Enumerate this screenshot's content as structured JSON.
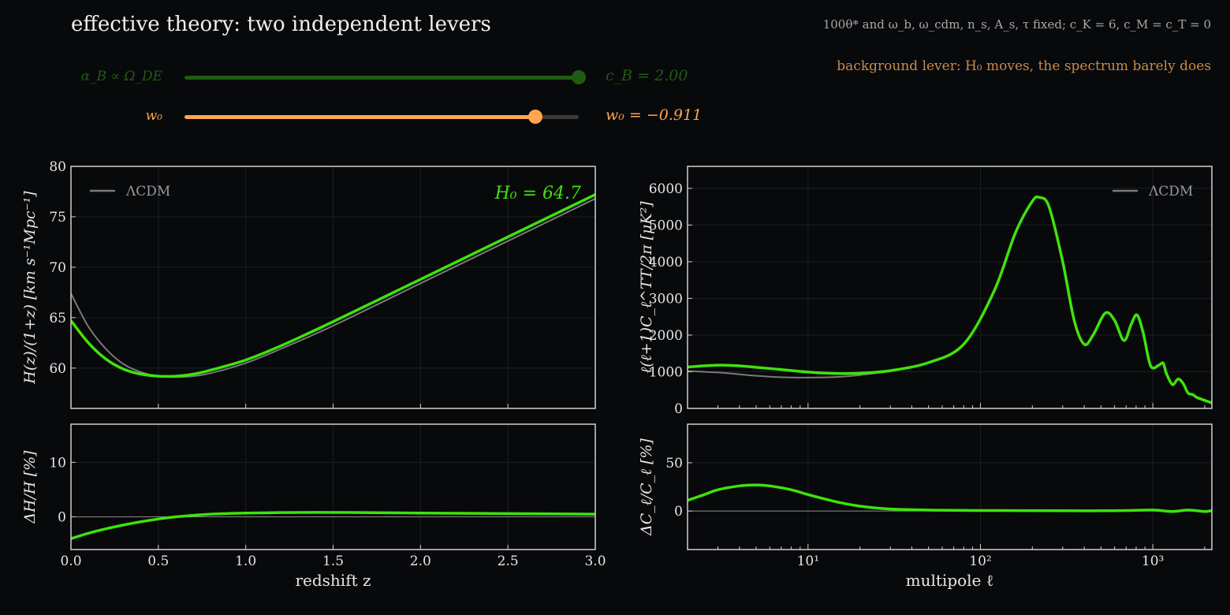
{
  "header": {
    "title": "effective theory: two independent levers",
    "subtitle": "100θ* and ω_b, ω_cdm, n_s, A_s, τ fixed;  c_K = 6, c_M = c_T = 0",
    "lever_note": "background lever:  H₀ moves, the spectrum barely does"
  },
  "sliders": [
    {
      "label": "α_B ∝ Ω_DE",
      "readout": "c_B = 2.00",
      "value_fraction": 1.0,
      "color": "#1f5c12",
      "track_color": "#1f5c12"
    },
    {
      "label": "w₀",
      "readout": "w₀ = −0.911",
      "value_fraction": 0.89,
      "color": "#ffa64d",
      "track_color": "#3a3a3a"
    }
  ],
  "colors": {
    "model": "#3ee30b",
    "lcdm": "#7a7a7a",
    "axis": "#d0d0d0",
    "grid": "#1c1f22"
  },
  "chart_data": [
    {
      "type": "line",
      "id": "hubble",
      "ylabel": "H(z)/(1+z)  [km s⁻¹Mpc⁻¹]",
      "xlim": [
        0,
        3
      ],
      "ylim": [
        56,
        80
      ],
      "xticks": [
        0.0,
        0.5,
        1.0,
        1.5,
        2.0,
        2.5,
        3.0
      ],
      "yticks": [
        60,
        65,
        70,
        75,
        80
      ],
      "legend": "top-left",
      "annotation": "H₀ = 64.7",
      "series": [
        {
          "name": "ΛCDM",
          "x": [
            0,
            0.1,
            0.2,
            0.3,
            0.4,
            0.5,
            0.6,
            0.7,
            0.8,
            1.0,
            1.2,
            1.5,
            2.0,
            2.5,
            3.0
          ],
          "y": [
            67.4,
            64.1,
            61.9,
            60.4,
            59.6,
            59.2,
            59.1,
            59.2,
            59.5,
            60.5,
            61.9,
            64.2,
            68.4,
            72.6,
            76.8
          ]
        },
        {
          "name": "",
          "x": [
            0,
            0.1,
            0.2,
            0.3,
            0.4,
            0.5,
            0.6,
            0.7,
            0.8,
            1.0,
            1.2,
            1.5,
            2.0,
            2.5,
            3.0
          ],
          "y": [
            64.7,
            62.5,
            60.9,
            59.9,
            59.4,
            59.2,
            59.2,
            59.4,
            59.8,
            60.8,
            62.2,
            64.6,
            68.8,
            73.0,
            77.2
          ]
        }
      ]
    },
    {
      "type": "line",
      "id": "hubble-diff",
      "xlabel": "redshift z",
      "ylabel": "ΔH/H  [%]",
      "xlim": [
        0,
        3
      ],
      "ylim": [
        -6,
        17
      ],
      "xticks": [
        0.0,
        0.5,
        1.0,
        1.5,
        2.0,
        2.5,
        3.0
      ],
      "yticks": [
        0,
        10
      ],
      "series": [
        {
          "name": "",
          "x": [
            0,
            0.1,
            0.2,
            0.3,
            0.4,
            0.5,
            0.6,
            0.8,
            1.0,
            1.3,
            1.6,
            2.0,
            2.5,
            3.0
          ],
          "y": [
            -4.0,
            -3.0,
            -2.2,
            -1.5,
            -0.9,
            -0.4,
            0.0,
            0.5,
            0.7,
            0.8,
            0.8,
            0.7,
            0.6,
            0.5
          ]
        }
      ]
    },
    {
      "type": "line",
      "id": "cmb",
      "ylabel": "ℓ(ℓ+1)C_ℓ^TT/2π  [μK²]",
      "xscale": "log",
      "xlim": [
        2,
        2200
      ],
      "ylim": [
        0,
        6600
      ],
      "yticks": [
        0,
        1000,
        2000,
        3000,
        4000,
        5000,
        6000
      ],
      "legend": "top-right",
      "series": [
        {
          "name": "ΛCDM",
          "x": [
            2,
            3,
            4,
            5,
            7,
            10,
            15,
            20,
            30
          ],
          "y": [
            1020,
            980,
            930,
            890,
            850,
            840,
            860,
            910,
            1010
          ]
        },
        {
          "name": "",
          "x": [
            2,
            3,
            4,
            5,
            7,
            10,
            15,
            20,
            30,
            50,
            80,
            120,
            160,
            200,
            220,
            250,
            300,
            350,
            400,
            450,
            530,
            600,
            680,
            750,
            810,
            880,
            950,
            1000,
            1100,
            1150,
            1200,
            1300,
            1400,
            1500,
            1600,
            1700,
            1800,
            2000,
            2200
          ],
          "y": [
            1130,
            1180,
            1160,
            1120,
            1060,
            990,
            950,
            960,
            1030,
            1250,
            1750,
            3200,
            4800,
            5650,
            5750,
            5500,
            4000,
            2400,
            1750,
            2000,
            2600,
            2400,
            1850,
            2300,
            2550,
            2050,
            1300,
            1100,
            1200,
            1230,
            950,
            650,
            800,
            680,
            420,
            380,
            300,
            220,
            150
          ]
        }
      ]
    },
    {
      "type": "line",
      "id": "cmb-diff",
      "xlabel": "multipole ℓ",
      "ylabel": "ΔC_ℓ/C_ℓ  [%]",
      "xscale": "log",
      "xlim": [
        2,
        2200
      ],
      "ylim": [
        -40,
        90
      ],
      "xticks": [
        10,
        100,
        1000
      ],
      "xtick_labels": [
        "10¹",
        "10²",
        "10³"
      ],
      "yticks": [
        0,
        50
      ],
      "series": [
        {
          "name": "",
          "x": [
            2,
            2.5,
            3,
            4,
            5,
            6,
            8,
            10,
            15,
            20,
            30,
            50,
            100,
            300,
            500,
            700,
            1000,
            1300,
            1600,
            2000,
            2200
          ],
          "y": [
            11,
            17,
            22,
            26,
            27,
            26,
            22,
            17,
            9,
            5,
            2,
            1,
            0.5,
            0.3,
            0.2,
            0.5,
            1,
            -0.5,
            1,
            -0.5,
            0.5
          ]
        }
      ]
    }
  ]
}
